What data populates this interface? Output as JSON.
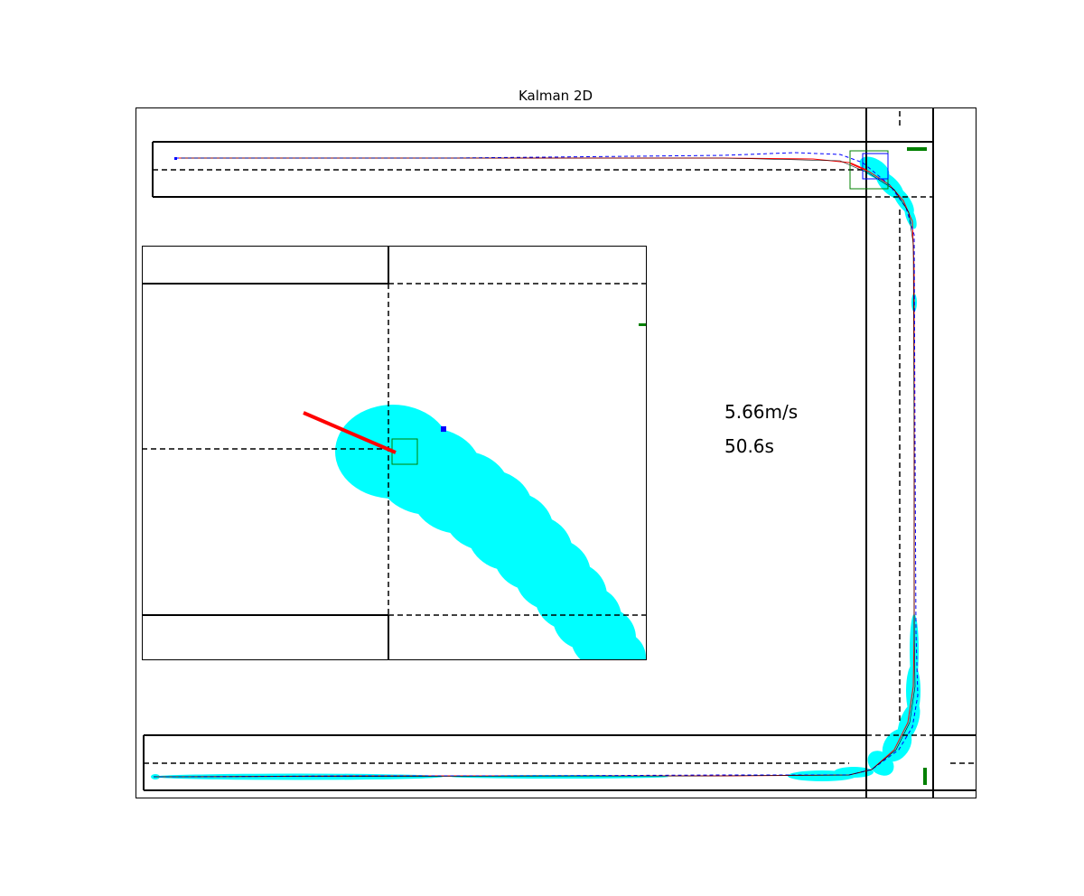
{
  "chart_data": {
    "type": "scatter",
    "title": "Kalman 2D",
    "xlabel": "",
    "ylabel": "",
    "grid": false,
    "annotations": {
      "speed": "5.66m/s",
      "time": "50.6s"
    },
    "series": [
      {
        "kind": "line",
        "color": "#ff0000",
        "points": [
          [
            194,
            175
          ],
          [
            400,
            175
          ],
          [
            600,
            175
          ],
          [
            800,
            175
          ],
          [
            900,
            176
          ],
          [
            940,
            180
          ],
          [
            962,
            190
          ],
          [
            985,
            205
          ],
          [
            1000,
            222
          ],
          [
            1010,
            245
          ],
          [
            1012,
            300
          ],
          [
            1012,
            500
          ],
          [
            1012,
            700
          ],
          [
            1011,
            760
          ],
          [
            1005,
            800
          ],
          [
            990,
            830
          ],
          [
            965,
            852
          ],
          [
            940,
            858
          ],
          [
            800,
            859
          ],
          [
            600,
            859
          ],
          [
            400,
            859
          ],
          [
            200,
            860
          ],
          [
            170,
            860
          ]
        ]
      },
      {
        "kind": "dashed-line",
        "color": "#0000ff",
        "points": [
          [
            194,
            175
          ],
          [
            500,
            175
          ],
          [
            800,
            172
          ],
          [
            880,
            169
          ],
          [
            930,
            171
          ],
          [
            955,
            180
          ],
          [
            985,
            205
          ],
          [
            1003,
            230
          ],
          [
            1012,
            260
          ],
          [
            1013,
            500
          ],
          [
            1014,
            700
          ],
          [
            1016,
            770
          ],
          [
            1010,
            805
          ],
          [
            995,
            830
          ],
          [
            965,
            852
          ],
          [
            940,
            858
          ],
          [
            800,
            858
          ],
          [
            600,
            859
          ],
          [
            400,
            859
          ],
          [
            200,
            860
          ],
          [
            170,
            860
          ]
        ]
      },
      {
        "kind": "thin-line",
        "color": "#000000",
        "points": [
          [
            200,
            175
          ],
          [
            800,
            175
          ],
          [
            930,
            178
          ],
          [
            962,
            192
          ],
          [
            990,
            210
          ],
          [
            1006,
            235
          ],
          [
            1011,
            270
          ],
          [
            1012,
            500
          ],
          [
            1012,
            700
          ],
          [
            1013,
            760
          ],
          [
            1007,
            800
          ],
          [
            992,
            830
          ],
          [
            965,
            852
          ],
          [
            940,
            858
          ],
          [
            800,
            859
          ],
          [
            170,
            860
          ]
        ]
      }
    ],
    "colors": {
      "uncertainty": "#00ffff",
      "measurement": "#0000ff",
      "estimate": "#ff0000",
      "landmark": "#008000",
      "track": "#000000"
    }
  }
}
